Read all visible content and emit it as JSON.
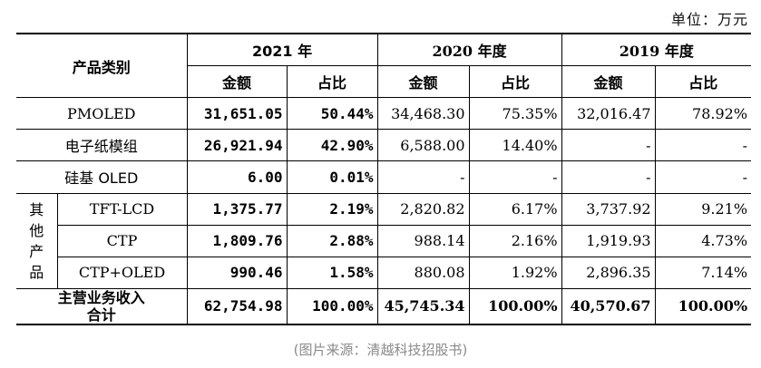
{
  "unit": "单位：万元",
  "table": {
    "header": {
      "category": "产品类别",
      "y2021": "2021 年",
      "y2020": "2020 年度",
      "y2019": "2019 年度",
      "amount": "金额",
      "share": "占比"
    },
    "rows": [
      {
        "name": "PMOLED",
        "a21": "31,651.05",
        "s21": "50.44%",
        "a20": "34,468.30",
        "s20": "75.35%",
        "a19": "32,016.47",
        "s19": "78.92%"
      },
      {
        "name": "电子纸模组",
        "a21": "26,921.94",
        "s21": "42.90%",
        "a20": "6,588.00",
        "s20": "14.40%",
        "a19": "-",
        "s19": "-"
      },
      {
        "name": "硅基 OLED",
        "a21": "6.00",
        "s21": "0.01%",
        "a20": "-",
        "s20": "-",
        "a19": "-",
        "s19": "-"
      }
    ],
    "other_group": {
      "label_chars": [
        "其",
        "他",
        "产",
        "品"
      ],
      "rows": [
        {
          "name": "TFT-LCD",
          "a21": "1,375.77",
          "s21": "2.19%",
          "a20": "2,820.82",
          "s20": "6.17%",
          "a19": "3,737.92",
          "s19": "9.21%"
        },
        {
          "name": "CTP",
          "a21": "1,809.76",
          "s21": "2.88%",
          "a20": "988.14",
          "s20": "2.16%",
          "a19": "1,919.93",
          "s19": "4.73%"
        },
        {
          "name": "CTP+OLED",
          "a21": "990.46",
          "s21": "1.58%",
          "a20": "880.08",
          "s20": "1.92%",
          "a19": "2,896.35",
          "s19": "7.14%"
        }
      ]
    },
    "total": {
      "label_line1": "主营业务收入",
      "label_line2": "合计",
      "a21": "62,754.98",
      "s21": "100.00%",
      "a20": "45,745.34",
      "s20": "100.00%",
      "a19": "40,570.67",
      "s19": "100.00%"
    }
  },
  "caption": "(图片来源：清越科技招股书)"
}
